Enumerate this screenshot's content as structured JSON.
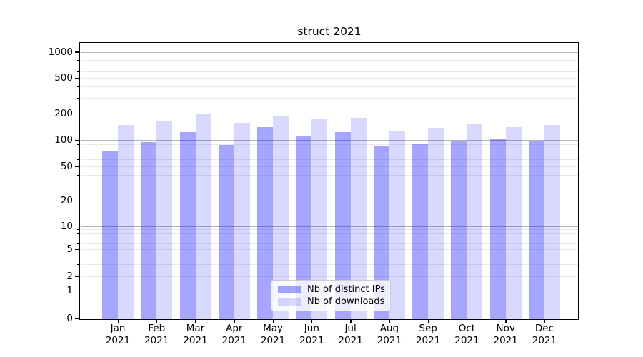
{
  "chart_data": {
    "type": "bar",
    "title": "struct 2021",
    "categories": [
      "Jan 2021",
      "Feb 2021",
      "Mar 2021",
      "Apr 2021",
      "May 2021",
      "Jun 2021",
      "Jul 2021",
      "Aug 2021",
      "Sep 2021",
      "Oct 2021",
      "Nov 2021",
      "Dec 2021"
    ],
    "series": [
      {
        "name": "Nb of distinct IPs",
        "color": "rgba(0, 0, 255, 0.35)",
        "values": [
          75,
          94,
          122,
          88,
          141,
          112,
          123,
          85,
          91,
          96,
          101,
          98
        ]
      },
      {
        "name": "Nb of downloads",
        "color": "rgba(0, 0, 255, 0.15)",
        "values": [
          150,
          167,
          200,
          158,
          191,
          174,
          180,
          125,
          139,
          151,
          141,
          148
        ]
      }
    ],
    "xlabel": "",
    "ylabel": "",
    "yscale": "symlog",
    "yticks": [
      0,
      1,
      2,
      5,
      10,
      20,
      50,
      100,
      200,
      500,
      1000
    ],
    "ylim": [
      0,
      1270
    ],
    "grid": true,
    "legend_position": "lower center"
  }
}
